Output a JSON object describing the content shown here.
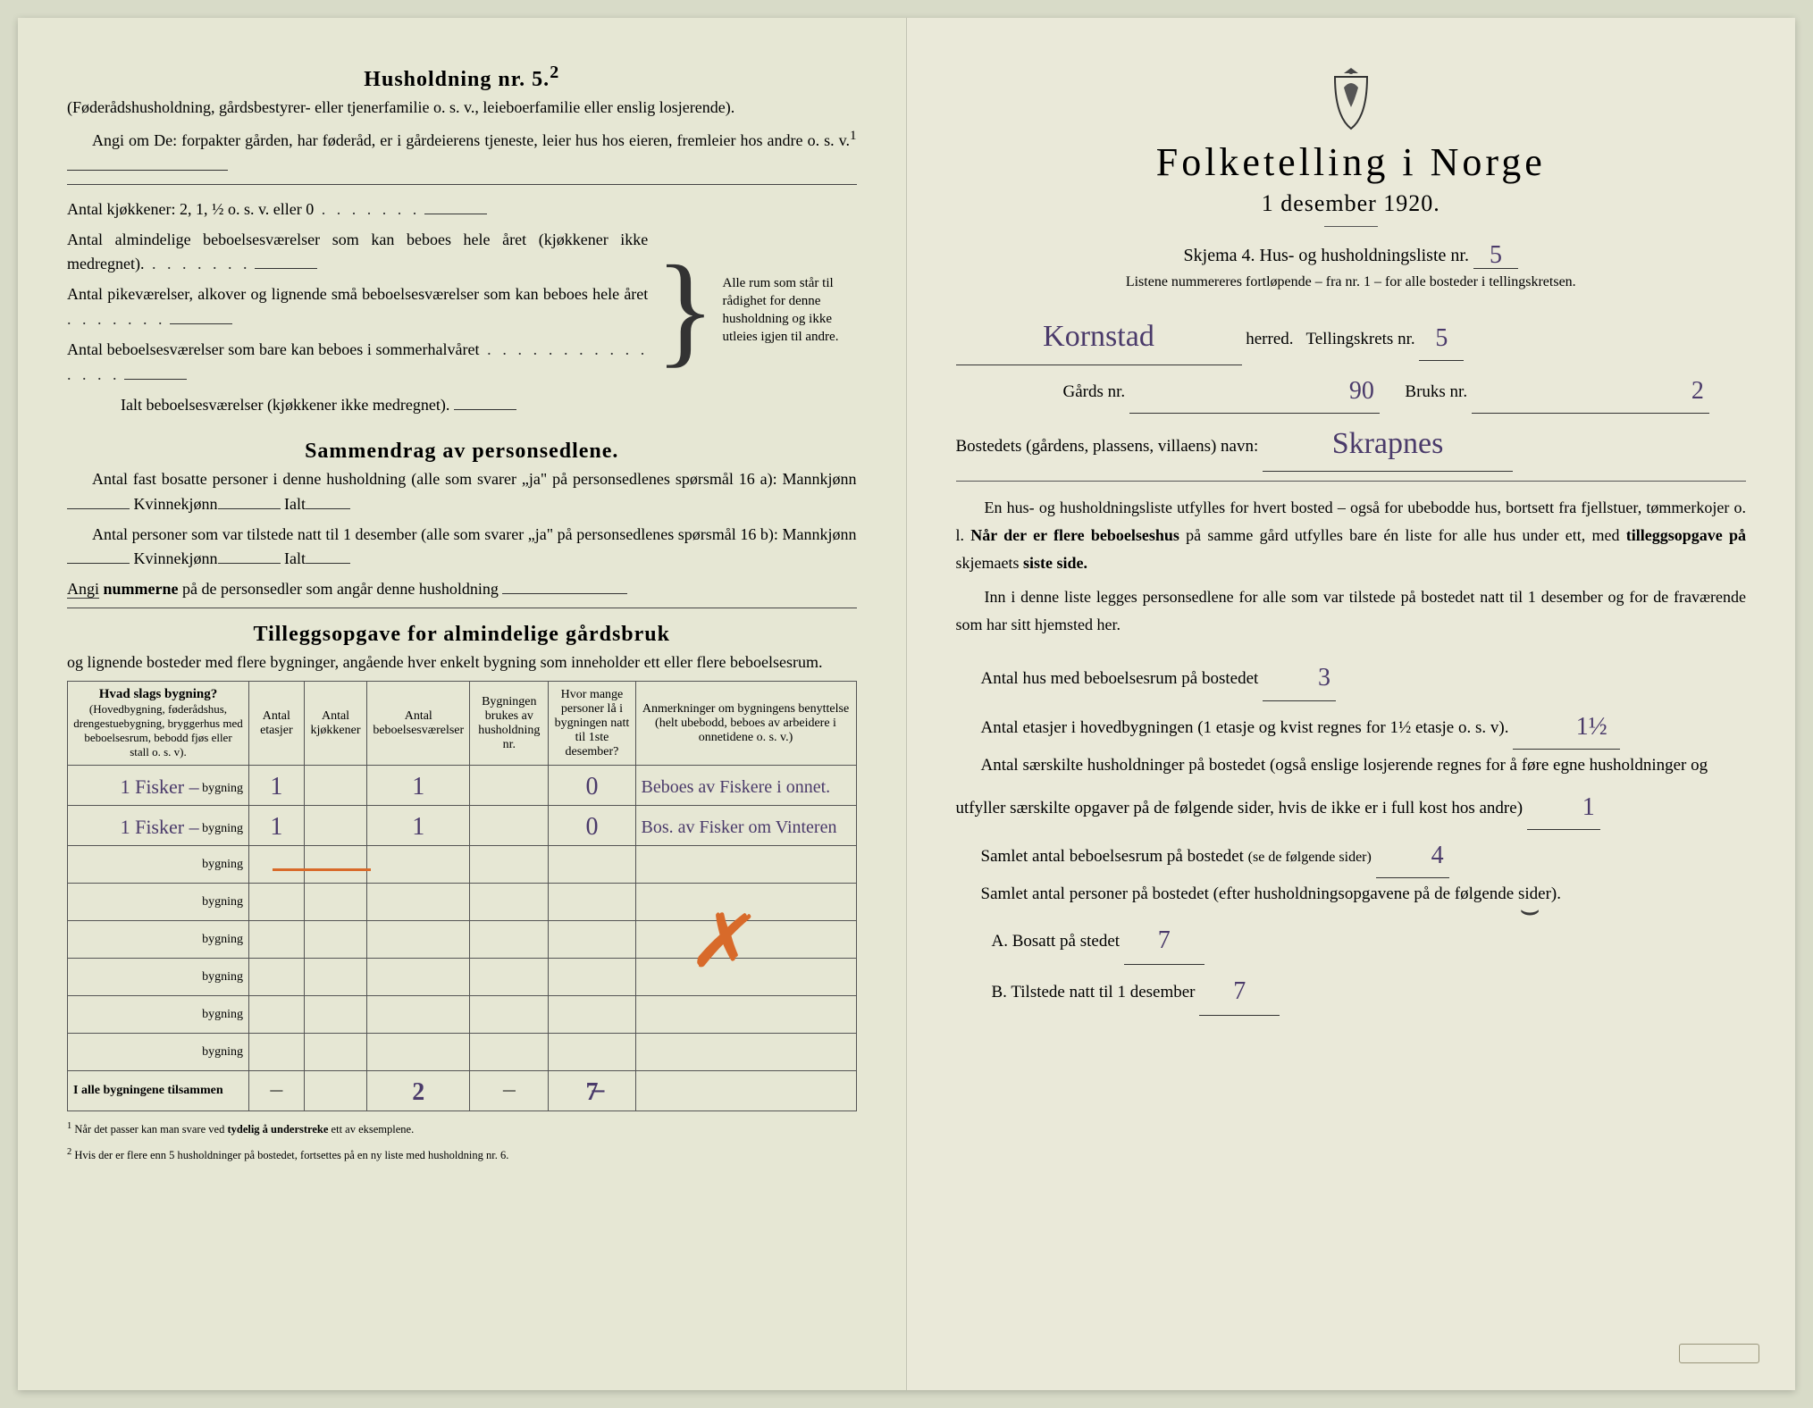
{
  "colors": {
    "paper": "#e8e8d8",
    "ink": "#2b2b2b",
    "handwriting": "#4a3a6a",
    "orange": "#d86a2a"
  },
  "left": {
    "heading": "Husholdning nr. 5.",
    "heading_sup": "2",
    "intro1": "(Føderådshusholdning, gårdsbestyrer- eller tjenerfamilie o. s. v., leieboerfamilie eller enslig losjerende).",
    "intro2_lead": "Angi om De:",
    "intro2_rest": "forpakter gården, har føderåd, er i gårdeierens tjeneste, leier hus hos eieren, fremleier hos andre o. s. v.",
    "intro2_sup": "1",
    "kitchens_line": "Antal kjøkkener: 2, 1, ½ o. s. v. eller 0",
    "rooms1": "Antal almindelige beboelsesværelser som kan beboes hele året (kjøkkener ikke medregnet).",
    "rooms2": "Antal pikeværelser, alkover og lignende små beboelsesværelser som kan beboes hele året",
    "rooms3": "Antal beboelsesværelser som bare kan beboes i sommerhalvåret",
    "rooms_total": "Ialt beboelsesværelser  (kjøkkener ikke medregnet).",
    "brace_note": "Alle rum som står til rådighet for denne husholdning og ikke utleies igjen til andre.",
    "summary_heading": "Sammendrag av personsedlene.",
    "summary_p1a": "Antal fast bosatte personer i denne husholdning (alle som svarer „ja\" på personsedlenes spørsmål 16 a):",
    "label_mann": "Mannkjønn",
    "label_kvinne": "Kvinnekjønn",
    "label_ialt": "Ialt",
    "summary_p2": "Antal personer som var tilstede natt til 1 desember (alle som svarer „ja\" på personsedlenes spørsmål 16 b):",
    "summary_p3_lead": "Angi",
    "summary_p3_bold": "nummerne",
    "summary_p3_rest": "på de personsedler som angår denne husholdning",
    "tillegg_heading": "Tilleggsopgave for almindelige gårdsbruk",
    "tillegg_sub": "og lignende bosteder med flere bygninger, angående hver enkelt bygning som inneholder ett eller flere beboelsesrum.",
    "table": {
      "headers": {
        "c1_main": "Hvad slags bygning?",
        "c1_sub": "(Hovedbygning, føderådshus, drengestuebygning, bryggerhus med beboelsesrum, bebodd fjøs eller stall o. s. v).",
        "c2": "Antal etasjer",
        "c3": "Antal kjøkkener",
        "c4": "Antal beboelsesværelser",
        "c5": "Bygningen brukes av husholdning nr.",
        "c6": "Hvor mange personer lå i bygningen natt til 1ste desember?",
        "c7": "Anmerkninger om bygningens benyttelse (helt ubebodd, beboes av arbeidere i onnetidene o. s. v.)"
      },
      "row_suffix": "bygning",
      "rows": [
        {
          "c1_hw": "1 Fisker –",
          "c2": "1",
          "c3": "",
          "c4": "1",
          "c5": "",
          "c6": "0",
          "c7": "Beboes av Fiskere i onnet."
        },
        {
          "c1_hw": "1 Fisker –",
          "c2": "1",
          "c3": "",
          "c4": "1",
          "c5": "",
          "c6": "0",
          "c7": "Bos. av Fisker om Vinteren"
        },
        {
          "c1_hw": "",
          "c2": "",
          "c3": "",
          "c4": "",
          "c5": "",
          "c6": "",
          "c7": ""
        },
        {
          "c1_hw": "",
          "c2": "",
          "c3": "",
          "c4": "",
          "c5": "",
          "c6": "",
          "c7": ""
        },
        {
          "c1_hw": "",
          "c2": "",
          "c3": "",
          "c4": "",
          "c5": "",
          "c6": "",
          "c7": ""
        },
        {
          "c1_hw": "",
          "c2": "",
          "c3": "",
          "c4": "",
          "c5": "",
          "c6": "",
          "c7": ""
        },
        {
          "c1_hw": "",
          "c2": "",
          "c3": "",
          "c4": "",
          "c5": "",
          "c6": "",
          "c7": ""
        },
        {
          "c1_hw": "",
          "c2": "",
          "c3": "",
          "c4": "",
          "c5": "",
          "c6": "",
          "c7": ""
        }
      ],
      "footer_label": "I alle bygningene tilsammen",
      "footer": {
        "c2": "—",
        "c3": "",
        "c4": "2",
        "c5": "—",
        "c6": "7̶",
        "c7": ""
      }
    },
    "footnote1": "Når det passer kan man svare ved",
    "footnote1_bold": "tydelig å understreke",
    "footnote1_rest": "ett av eksemplene.",
    "footnote2": "Hvis der er flere enn 5 husholdninger på bostedet, fortsettes på en ny liste med husholdning nr. 6."
  },
  "right": {
    "main_title": "Folketelling i Norge",
    "date_line": "1 desember 1920.",
    "skjema_line_a": "Skjema 4.   Hus- og husholdningsliste nr.",
    "skjema_value": "5",
    "skjema_note": "Listene nummereres fortløpende – fra nr. 1 – for alle bosteder i tellingskretsen.",
    "herred_value": "Kornstad",
    "herred_label": "herred.",
    "krets_label": "Tellingskrets nr.",
    "krets_value": "5",
    "gard_label": "Gårds nr.",
    "gard_value": "90",
    "bruk_label": "Bruks nr.",
    "bruk_value": "2",
    "bosted_label": "Bostedets (gårdens, plassens, villaens) navn:",
    "bosted_value": "Skrapnes",
    "para1": "En hus- og husholdningsliste utfylles for hvert bosted – også for ubebodde hus, bortsett fra fjellstuer, tømmerkojer o. l.",
    "para1_bold1": "Når der er flere beboelseshus",
    "para1_rest": "på samme gård utfylles bare én liste for alle hus under ett, med",
    "para1_bold2": "tilleggsopgave på",
    "para1_tail": "skjemaets",
    "para1_bold3": "siste side.",
    "para2": "Inn i denne liste legges personsedlene for alle som var tilstede på bostedet natt til 1 desember og for de fraværende som har sitt hjemsted her.",
    "line_hus": "Antal hus med beboelsesrum på bostedet",
    "line_hus_value": "3",
    "line_etasjer_a": "Antal etasjer i hovedbygningen (1 etasje og kvist regnes for 1½ etasje o. s. v).",
    "line_etasjer_value": "1½",
    "line_hush_a": "Antal særskilte husholdninger på bostedet (også enslige losjerende regnes for å føre egne husholdninger og utfyller særskilte opgaver på de følgende sider, hvis de ikke er i full kost hos andre)",
    "line_hush_value": "1",
    "line_rum": "Samlet antal beboelsesrum på bostedet",
    "line_rum_note": "(se de følgende sider)",
    "line_rum_value": "4",
    "line_pers": "Samlet antal personer på bostedet (efter husholdningsopgavene på de følgende sider).",
    "ab_a": "A.  Bosatt på stedet",
    "ab_a_value": "7",
    "ab_b": "B.  Tilstede natt til 1 desember",
    "ab_b_value": "7"
  }
}
